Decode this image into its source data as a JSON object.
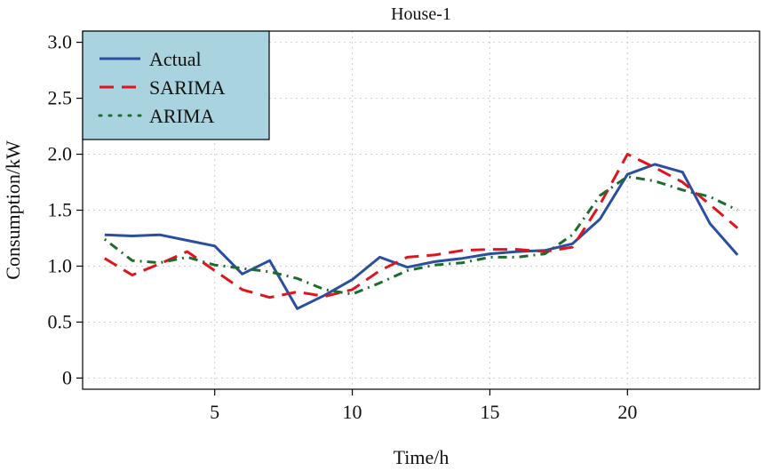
{
  "chart_data": {
    "type": "line",
    "title": "House-1",
    "xlabel": "Time/h",
    "ylabel": "Consumption/kW",
    "xlim": [
      0.2,
      24.8
    ],
    "ylim": [
      -0.1,
      3.1
    ],
    "x_ticks": [
      5,
      10,
      15,
      20
    ],
    "y_ticks": [
      0,
      0.5,
      1.0,
      1.5,
      2.0,
      2.5,
      3.0
    ],
    "y_tick_labels": [
      "0",
      "0.5",
      "1.0",
      "1.5",
      "2.0",
      "2.5",
      "3.0"
    ],
    "grid": true,
    "legend_position": "top-left",
    "x": [
      1,
      2,
      3,
      4,
      5,
      6,
      7,
      8,
      9,
      10,
      11,
      12,
      13,
      14,
      15,
      16,
      17,
      18,
      19,
      20,
      21,
      22,
      23,
      24
    ],
    "series": [
      {
        "name": "Actual",
        "color": "#2a4fa0",
        "style": "solid",
        "values": [
          1.28,
          1.27,
          1.28,
          1.23,
          1.18,
          0.93,
          1.05,
          0.62,
          0.74,
          0.88,
          1.08,
          0.99,
          1.04,
          1.07,
          1.11,
          1.13,
          1.14,
          1.2,
          1.42,
          1.82,
          1.91,
          1.84,
          1.38,
          1.1
        ]
      },
      {
        "name": "SARIMA",
        "color": "#e0141e",
        "style": "dashed",
        "values": [
          1.07,
          0.92,
          1.02,
          1.13,
          0.96,
          0.79,
          0.72,
          0.77,
          0.73,
          0.79,
          0.96,
          1.08,
          1.1,
          1.14,
          1.15,
          1.15,
          1.13,
          1.17,
          1.55,
          2.0,
          1.88,
          1.75,
          1.55,
          1.34
        ]
      },
      {
        "name": "ARIMA",
        "color": "#1e6b2e",
        "style": "dotdash",
        "values": [
          1.24,
          1.05,
          1.03,
          1.08,
          1.01,
          0.98,
          0.95,
          0.89,
          0.79,
          0.75,
          0.85,
          0.96,
          1.01,
          1.03,
          1.08,
          1.08,
          1.11,
          1.28,
          1.63,
          1.8,
          1.76,
          1.68,
          1.62,
          1.5
        ]
      }
    ]
  }
}
